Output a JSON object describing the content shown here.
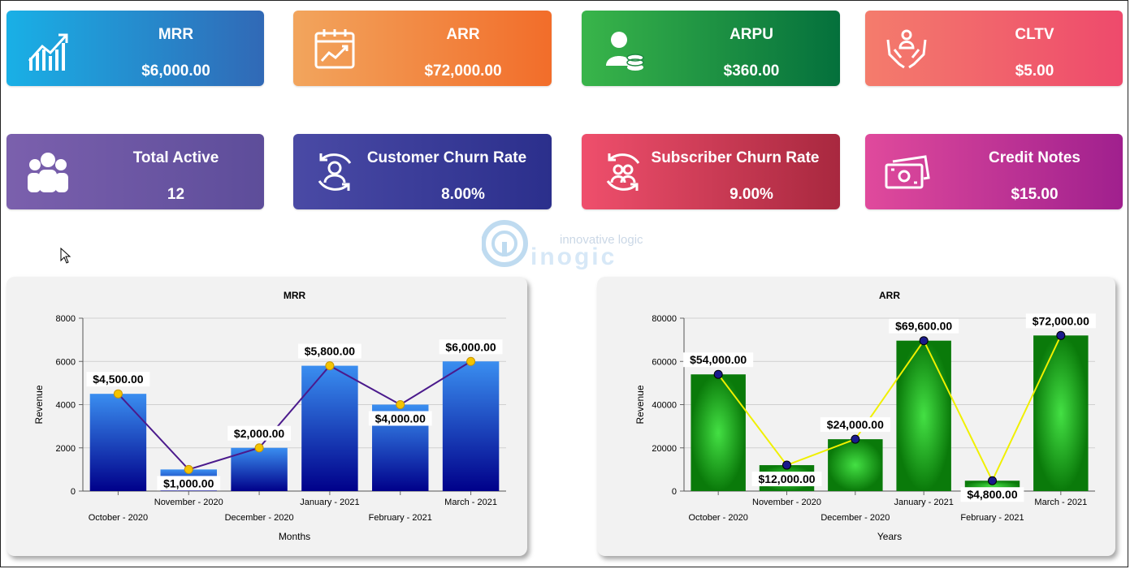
{
  "kpis": [
    {
      "title": "MRR",
      "value": "$6,000.00",
      "icon": "growth-chart-icon",
      "grad": [
        "#19b0e6",
        "#3169b6"
      ]
    },
    {
      "title": "ARR",
      "value": "$72,000.00",
      "icon": "calendar-chart-icon",
      "grad": [
        "#f2a55d",
        "#f26d2a"
      ]
    },
    {
      "title": "ARPU",
      "value": "$360.00",
      "icon": "user-coins-icon",
      "grad": [
        "#39b54a",
        "#04703c"
      ]
    },
    {
      "title": "CLTV",
      "value": "$5.00",
      "icon": "hands-user-icon",
      "grad": [
        "#f47c6c",
        "#ee4a6c"
      ]
    },
    {
      "title": "Total Active",
      "value": "12",
      "icon": "users-group-icon",
      "grad": [
        "#7b60ad",
        "#5d4d9a"
      ]
    },
    {
      "title": "Customer Churn Rate",
      "value": "8.00%",
      "icon": "user-cycle-icon",
      "grad": [
        "#4a4aa5",
        "#2b2f8c"
      ]
    },
    {
      "title": "Subscriber Churn Rate",
      "value": "9.00%",
      "icon": "users-cycle-icon",
      "grad": [
        "#ef4f6c",
        "#a8283f"
      ]
    },
    {
      "title": "Credit Notes",
      "value": "$15.00",
      "icon": "money-bills-icon",
      "grad": [
        "#e04a9c",
        "#a0208e"
      ]
    }
  ],
  "watermark": {
    "tagline": "innovative logic",
    "brand": "inogic"
  },
  "charts": {
    "mrr": {
      "title": "MRR",
      "xlabel": "Months",
      "ylabel": "Revenue",
      "accent": "#1f3fd0",
      "line": "#4b1a8c",
      "marker": "#f4c400"
    },
    "arr": {
      "title": "ARR",
      "xlabel": "Years",
      "ylabel": "Revenue",
      "accent": "#1a9a1a",
      "line": "#f0f000",
      "marker": "#1a1a8c"
    }
  },
  "chart_data": [
    {
      "type": "bar",
      "title": "MRR",
      "xlabel": "Months",
      "ylabel": "Revenue",
      "categories": [
        "October - 2020",
        "November - 2020",
        "December - 2020",
        "January - 2021",
        "February - 2021",
        "March - 2021"
      ],
      "values": [
        4500,
        1000,
        2000,
        5800,
        4000,
        6000
      ],
      "data_labels": [
        "$4,500.00",
        "$1,000.00",
        "$2,000.00",
        "$5,800.00",
        "$4,000.00",
        "$6,000.00"
      ],
      "ylim": [
        0,
        8000
      ],
      "yticks": [
        "0",
        "2000",
        "4000",
        "6000",
        "8000"
      ],
      "overlay": "line",
      "grid": true
    },
    {
      "type": "bar",
      "title": "ARR",
      "xlabel": "Years",
      "ylabel": "Revenue",
      "categories": [
        "October - 2020",
        "November - 2020",
        "December - 2020",
        "January - 2021",
        "February - 2021",
        "March - 2021"
      ],
      "values": [
        54000,
        12000,
        24000,
        69600,
        4800,
        72000
      ],
      "data_labels": [
        "$54,000.00",
        "$12,000.00",
        "$24,000.00",
        "$69,600.00",
        "$4,800.00",
        "$72,000.00"
      ],
      "ylim": [
        0,
        80000
      ],
      "yticks": [
        "0",
        "20000",
        "40000",
        "60000",
        "80000"
      ],
      "overlay": "line",
      "grid": true
    }
  ]
}
